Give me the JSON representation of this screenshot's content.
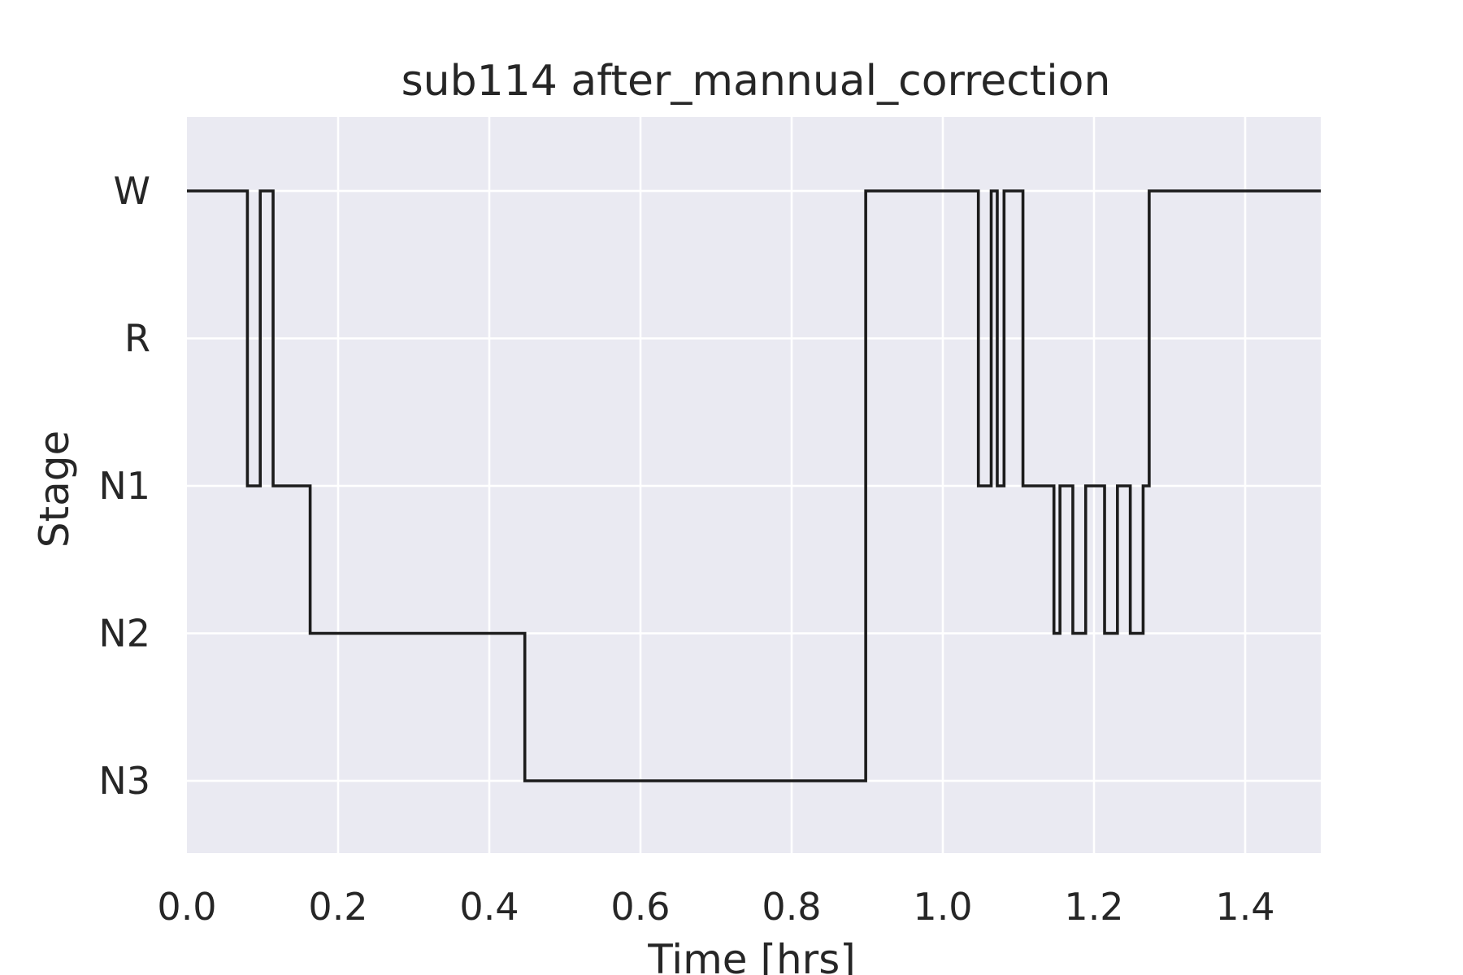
{
  "chart_data": {
    "type": "line",
    "title": "sub114 after_mannual_correction",
    "xlabel": "Time [hrs]",
    "ylabel": "Stage",
    "xlim": [
      0.0,
      1.5
    ],
    "xticks": [
      0.0,
      0.2,
      0.4,
      0.6,
      0.8,
      1.0,
      1.2,
      1.4
    ],
    "xtick_labels": [
      "0.0",
      "0.2",
      "0.4",
      "0.6",
      "0.8",
      "1.0",
      "1.2",
      "1.4"
    ],
    "yticks": [
      "W",
      "R",
      "N1",
      "N2",
      "N3"
    ],
    "grid": true,
    "step": true,
    "series": [
      {
        "color": "#1c1c1c",
        "points": [
          {
            "x": 0.0,
            "y": "W"
          },
          {
            "x": 0.08,
            "y": "N1"
          },
          {
            "x": 0.097,
            "y": "W"
          },
          {
            "x": 0.114,
            "y": "N1"
          },
          {
            "x": 0.163,
            "y": "N2"
          },
          {
            "x": 0.447,
            "y": "N3"
          },
          {
            "x": 0.898,
            "y": "W"
          },
          {
            "x": 1.047,
            "y": "N1"
          },
          {
            "x": 1.064,
            "y": "W"
          },
          {
            "x": 1.072,
            "y": "N1"
          },
          {
            "x": 1.081,
            "y": "W"
          },
          {
            "x": 1.106,
            "y": "N1"
          },
          {
            "x": 1.147,
            "y": "N2"
          },
          {
            "x": 1.155,
            "y": "N1"
          },
          {
            "x": 1.172,
            "y": "N2"
          },
          {
            "x": 1.189,
            "y": "N1"
          },
          {
            "x": 1.214,
            "y": "N2"
          },
          {
            "x": 1.231,
            "y": "N1"
          },
          {
            "x": 1.248,
            "y": "N2"
          },
          {
            "x": 1.265,
            "y": "N1"
          },
          {
            "x": 1.273,
            "y": "W"
          },
          {
            "x": 1.5,
            "y": "W"
          }
        ]
      }
    ]
  }
}
